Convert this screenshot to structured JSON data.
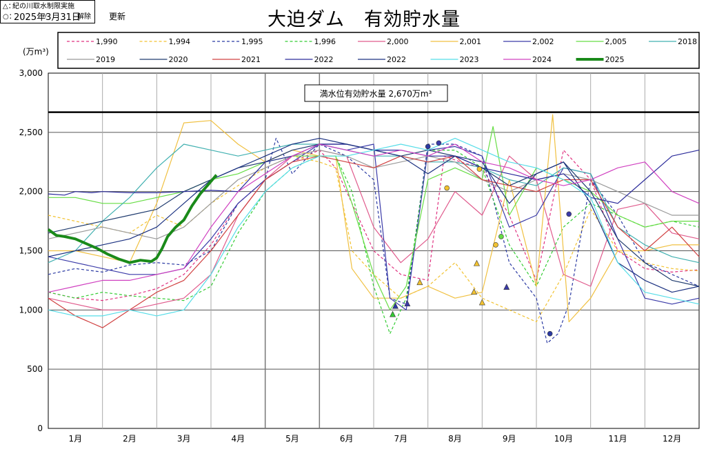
{
  "header": {
    "date": "2025年3月31日",
    "updated": "更新",
    "title": "大迫ダム　有効貯水量"
  },
  "notes": {
    "restrict_mark": "△：",
    "restrict_text": "紀の川取水制限実施",
    "release_mark": "○：",
    "release_ditto": "〃",
    "release_text": "解除"
  },
  "colors": {
    "y1990": "#e0307f",
    "y1994": "#f2c230",
    "y1995": "#2b3aa3",
    "y1996": "#33cc33",
    "y2000": "#e05a8c",
    "y2001": "#f0c040",
    "y2002": "#3a3aa8",
    "y2005": "#66dd44",
    "y2018": "#40b0b0",
    "y2019": "#999999",
    "y2020": "#1f3b6e",
    "y2021": "#d04040",
    "y2022a": "#2a2a9a",
    "y2022b": "#1a3080",
    "y2023": "#55dde8",
    "y2024": "#d040c0",
    "y2025": "#1a8a1a"
  },
  "chart_data": {
    "type": "line",
    "title": "大迫ダム　有効貯水量",
    "ylabel": "(万m³)",
    "ylim": [
      0,
      3000
    ],
    "yticks": [
      "0",
      "500",
      "1,000",
      "1,500",
      "2,000",
      "2,500",
      "3,000"
    ],
    "ytick_values": [
      0,
      500,
      1000,
      1500,
      2000,
      2500,
      3000
    ],
    "months": [
      "1月",
      "2月",
      "3月",
      "4月",
      "5月",
      "6月",
      "7月",
      "8月",
      "9月",
      "10月",
      "11月",
      "12月"
    ],
    "full_capacity": {
      "value": 2670,
      "label": "満水位有効貯水量 2,670万m³"
    },
    "legend": [
      {
        "key": "y1990",
        "label": "1,990",
        "dash": "4 3",
        "width": 1.2
      },
      {
        "key": "y1994",
        "label": "1,994",
        "dash": "4 3",
        "width": 1.2
      },
      {
        "key": "y1995",
        "label": "1,995",
        "dash": "4 3",
        "width": 1.2
      },
      {
        "key": "y1996",
        "label": "1,996",
        "dash": "4 3",
        "width": 1.2
      },
      {
        "key": "y2000",
        "label": "2,000",
        "dash": "",
        "width": 1.2
      },
      {
        "key": "y2001",
        "label": "2,001",
        "dash": "",
        "width": 1.2
      },
      {
        "key": "y2002",
        "label": "2,002",
        "dash": "",
        "width": 1.2
      },
      {
        "key": "y2005",
        "label": "2,005",
        "dash": "",
        "width": 1.2
      },
      {
        "key": "y2018",
        "label": "2018",
        "dash": "",
        "width": 1.2
      },
      {
        "key": "y2019",
        "label": "2019",
        "dash": "",
        "width": 1.2
      },
      {
        "key": "y2020",
        "label": "2020",
        "dash": "",
        "width": 1.2
      },
      {
        "key": "y2021",
        "label": "2021",
        "dash": "",
        "width": 1.2
      },
      {
        "key": "y2022a",
        "label": "2022",
        "dash": "",
        "width": 1.2
      },
      {
        "key": "y2022b",
        "label": "2022",
        "dash": "",
        "width": 1.2
      },
      {
        "key": "y2023",
        "label": "2023",
        "dash": "",
        "width": 1.2
      },
      {
        "key": "y2024",
        "label": "2024",
        "dash": "",
        "width": 1.2
      },
      {
        "key": "y2025",
        "label": "2025",
        "dash": "",
        "width": 4
      }
    ],
    "series": [
      {
        "key": "y1990",
        "name": "1,990",
        "x": [
          0,
          0.5,
          1,
          1.5,
          2,
          2.5,
          3,
          3.5,
          4,
          4.5,
          5,
          5.3,
          5.6,
          6,
          6.5,
          7,
          7.3,
          7.6,
          8,
          8.5,
          9,
          9.5,
          10,
          10.5,
          11,
          11.5,
          12
        ],
        "y": [
          1150,
          1100,
          1080,
          1120,
          1180,
          1300,
          1550,
          1900,
          2100,
          2250,
          2350,
          2200,
          1900,
          1500,
          1300,
          1250,
          2300,
          2250,
          2200,
          1800,
          1250,
          2350,
          2100,
          1500,
          1350,
          1320,
          1340
        ]
      },
      {
        "key": "y1994",
        "name": "1,994",
        "x": [
          0,
          0.5,
          1,
          1.5,
          2,
          2.5,
          3,
          3.5,
          4,
          4.5,
          5,
          5.3,
          5.6,
          6,
          6.5,
          7,
          7.5,
          8,
          8.5,
          9,
          9.5,
          10,
          10.5,
          11,
          11.5,
          12
        ],
        "y": [
          1800,
          1750,
          1700,
          1650,
          1800,
          1700,
          1900,
          2050,
          2200,
          2300,
          2250,
          2200,
          1500,
          1300,
          1100,
          1200,
          1400,
          1100,
          1000,
          900,
          1300,
          1850,
          1500,
          1400,
          1350,
          1330
        ]
      },
      {
        "key": "y1995",
        "name": "1,995",
        "x": [
          0,
          0.5,
          1,
          1.5,
          2,
          2.5,
          3,
          3.5,
          4,
          4.2,
          4.5,
          5,
          5.5,
          6,
          6.3,
          6.6,
          7,
          7.5,
          8,
          8.5,
          9,
          9.2,
          9.4,
          9.6,
          10,
          10.5,
          11,
          11.5,
          12
        ],
        "y": [
          1300,
          1350,
          1320,
          1380,
          1400,
          1380,
          1500,
          1900,
          2100,
          2450,
          2150,
          2400,
          2300,
          2100,
          1100,
          1050,
          2400,
          2400,
          2300,
          1400,
          1100,
          720,
          800,
          1050,
          2100,
          1800,
          1400,
          1300,
          1200
        ]
      },
      {
        "key": "y1996",
        "name": "1,996",
        "x": [
          0,
          0.5,
          1,
          1.5,
          2,
          2.5,
          3,
          3.5,
          4,
          4.5,
          5,
          5.3,
          5.6,
          6,
          6.3,
          6.6,
          7,
          7.5,
          8,
          8.5,
          9,
          9.5,
          10,
          10.5,
          11,
          11.5,
          12
        ],
        "y": [
          1150,
          1100,
          1150,
          1120,
          1100,
          1080,
          1200,
          1650,
          2000,
          2200,
          2300,
          2300,
          2000,
          1200,
          800,
          1100,
          2350,
          2350,
          2200,
          1550,
          1200,
          1700,
          1900,
          1800,
          1700,
          1750,
          1700
        ]
      },
      {
        "key": "y2000",
        "name": "2,000",
        "x": [
          0,
          0.5,
          1,
          1.5,
          2,
          2.5,
          3,
          3.5,
          4,
          4.5,
          5,
          5.5,
          6,
          6.5,
          7,
          7.5,
          8,
          8.5,
          9,
          9.5,
          10,
          10.5,
          11,
          11.5,
          12
        ],
        "y": [
          1100,
          1050,
          1000,
          1000,
          1050,
          1100,
          1300,
          1800,
          2100,
          2300,
          2350,
          2300,
          1700,
          1400,
          1600,
          2000,
          1800,
          2300,
          2100,
          1300,
          1200,
          1850,
          1900,
          1650,
          1600
        ]
      },
      {
        "key": "y2001",
        "name": "2,001",
        "x": [
          0,
          0.5,
          1,
          1.5,
          2,
          2.5,
          3,
          3.5,
          4,
          4.5,
          5,
          5.3,
          5.6,
          6,
          6.5,
          7,
          7.5,
          8,
          8.5,
          9,
          9.3,
          9.6,
          10,
          10.5,
          11,
          11.5,
          12
        ],
        "y": [
          1500,
          1500,
          1450,
          1400,
          1900,
          2580,
          2600,
          2400,
          2250,
          2350,
          2300,
          2300,
          1350,
          1100,
          1100,
          1200,
          1100,
          1150,
          2100,
          1200,
          2650,
          900,
          1100,
          1500,
          1500,
          1550,
          1550
        ]
      },
      {
        "key": "y2002",
        "name": "2,002",
        "x": [
          0,
          0.5,
          1,
          1.5,
          2,
          2.5,
          3,
          3.5,
          4,
          4.5,
          5,
          5.5,
          6,
          6.3,
          6.6,
          7,
          7.5,
          8,
          8.5,
          9,
          9.5,
          10,
          10.5,
          11,
          11.5,
          12
        ],
        "y": [
          1450,
          1400,
          1350,
          1300,
          1300,
          1350,
          1600,
          1900,
          2100,
          2250,
          2400,
          2350,
          2400,
          1100,
          1000,
          2350,
          2380,
          2300,
          1700,
          1800,
          2200,
          2150,
          1600,
          1100,
          1050,
          1100
        ]
      },
      {
        "key": "y2005",
        "name": "2,005",
        "x": [
          0,
          0.5,
          1,
          1.5,
          2,
          2.5,
          3,
          3.5,
          4,
          4.5,
          5,
          5.3,
          5.6,
          6,
          6.3,
          6.6,
          7,
          7.5,
          8,
          8.2,
          8.5,
          9,
          9.5,
          10,
          10.5,
          11,
          11.5,
          12
        ],
        "y": [
          1950,
          1950,
          1900,
          1900,
          1950,
          2000,
          2100,
          2150,
          2250,
          2300,
          2300,
          2300,
          1900,
          1300,
          1000,
          1200,
          2100,
          2200,
          2100,
          2550,
          1800,
          2200,
          2100,
          2000,
          1800,
          1700,
          1750,
          1750
        ]
      },
      {
        "key": "y2018",
        "name": "2018",
        "x": [
          0,
          0.5,
          1,
          1.5,
          2,
          2.5,
          3,
          3.5,
          4,
          4.5,
          5,
          5.5,
          6,
          6.5,
          7,
          7.5,
          8,
          8.5,
          9,
          9.5,
          10,
          10.5,
          11,
          11.5,
          12
        ],
        "y": [
          1400,
          1500,
          1750,
          1950,
          2200,
          2400,
          2350,
          2300,
          2350,
          2400,
          2400,
          2350,
          2300,
          2300,
          2250,
          2250,
          2200,
          2100,
          2050,
          2200,
          2150,
          1700,
          1550,
          1450,
          1400
        ]
      },
      {
        "key": "y2019",
        "name": "2019",
        "x": [
          0,
          0.5,
          1,
          1.5,
          2,
          2.5,
          3,
          3.5,
          4,
          4.5,
          5,
          5.5,
          6,
          6.5,
          7,
          7.5,
          8,
          8.5,
          9,
          9.5,
          10,
          10.5,
          11,
          11.5,
          12
        ],
        "y": [
          1600,
          1650,
          1700,
          1650,
          1600,
          1700,
          1900,
          2100,
          2200,
          2300,
          2350,
          2300,
          2200,
          2250,
          2300,
          2250,
          2100,
          2000,
          2100,
          2150,
          2100,
          2000,
          1900,
          1800,
          1800
        ]
      },
      {
        "key": "y2020",
        "name": "2020",
        "x": [
          0,
          0.5,
          1,
          1.5,
          2,
          2.5,
          3,
          3.5,
          4,
          4.5,
          5,
          5.5,
          6,
          6.5,
          7,
          7.5,
          8,
          8.5,
          9,
          9.5,
          10,
          10.5,
          11,
          11.5,
          12
        ],
        "y": [
          1650,
          1700,
          1750,
          1800,
          1850,
          2000,
          2100,
          2200,
          2250,
          2350,
          2400,
          2400,
          2350,
          2300,
          2350,
          2300,
          2200,
          2050,
          2150,
          2250,
          2000,
          1600,
          1400,
          1250,
          1200
        ]
      },
      {
        "key": "y2021",
        "name": "2021",
        "x": [
          0,
          0.5,
          1,
          1.5,
          2,
          2.5,
          3,
          3.5,
          4,
          4.5,
          5,
          5.5,
          6,
          6.5,
          7,
          7.5,
          8,
          8.5,
          9,
          9.5,
          10,
          10.5,
          11,
          11.5,
          12
        ],
        "y": [
          1100,
          950,
          850,
          1000,
          1150,
          1250,
          1500,
          1800,
          2100,
          2250,
          2300,
          2250,
          2200,
          2300,
          2250,
          2300,
          2100,
          2050,
          2000,
          2100,
          2100,
          1700,
          1500,
          1700,
          1450
        ]
      },
      {
        "key": "y2022a",
        "name": "2022",
        "x": [
          0,
          0.3,
          0.5,
          0.8,
          1,
          1.5,
          2,
          2.5,
          3,
          3.5,
          4,
          4.5,
          5,
          5.5,
          6,
          6.5,
          7,
          7.5,
          8,
          8.5,
          9,
          9.5,
          10,
          10.5,
          11,
          11.5,
          12
        ],
        "y": [
          1980,
          1970,
          2000,
          1990,
          2000,
          1990,
          1990,
          2000,
          2010,
          2000,
          2250,
          2300,
          2400,
          2400,
          2350,
          2350,
          2300,
          2300,
          2200,
          2150,
          2100,
          2150,
          1950,
          1900,
          2100,
          2300,
          2350
        ]
      },
      {
        "key": "y2022b",
        "name": "2022",
        "x": [
          0,
          0.5,
          1,
          1.5,
          2,
          2.5,
          3,
          3.5,
          4,
          4.5,
          5,
          5.5,
          6,
          6.5,
          7,
          7.5,
          8,
          8.5,
          9,
          9.5,
          10,
          10.5,
          11,
          11.5,
          12
        ],
        "y": [
          1450,
          1500,
          1550,
          1600,
          1700,
          1900,
          2100,
          2200,
          2300,
          2400,
          2450,
          2400,
          2350,
          2300,
          2150,
          2300,
          2250,
          1900,
          2150,
          2250,
          1900,
          1400,
          1250,
          1150,
          1200
        ]
      },
      {
        "key": "y2023",
        "name": "2023",
        "x": [
          0,
          0.5,
          1,
          1.5,
          2,
          2.5,
          3,
          3.5,
          4,
          4.5,
          5,
          5.5,
          6,
          6.5,
          7,
          7.5,
          8,
          8.5,
          9,
          9.5,
          10,
          10.5,
          11,
          11.5,
          12
        ],
        "y": [
          1000,
          950,
          950,
          1000,
          950,
          1000,
          1300,
          1700,
          2000,
          2200,
          2300,
          2300,
          2350,
          2400,
          2350,
          2450,
          2350,
          2250,
          2200,
          2100,
          1950,
          1400,
          1150,
          1100,
          1050
        ]
      },
      {
        "key": "y2024",
        "name": "2024",
        "x": [
          0,
          0.5,
          1,
          1.5,
          2,
          2.5,
          3,
          3.5,
          4,
          4.5,
          5,
          5.5,
          6,
          6.5,
          7,
          7.5,
          8,
          8.5,
          9,
          9.5,
          10,
          10.5,
          11,
          11.5,
          12
        ],
        "y": [
          1150,
          1200,
          1250,
          1250,
          1300,
          1350,
          1700,
          2000,
          2150,
          2300,
          2400,
          2350,
          2300,
          2350,
          2300,
          2400,
          2250,
          2200,
          2100,
          2050,
          2100,
          2200,
          2250,
          2000,
          1900
        ]
      },
      {
        "key": "y2025",
        "name": "2025",
        "x": [
          0,
          0.15,
          0.3,
          0.5,
          0.7,
          0.9,
          1.1,
          1.3,
          1.5,
          1.7,
          1.9,
          2.0,
          2.1,
          2.2,
          2.35,
          2.5,
          2.65,
          2.8,
          2.95,
          3.1
        ],
        "y": [
          1680,
          1630,
          1620,
          1600,
          1560,
          1520,
          1470,
          1430,
          1400,
          1420,
          1410,
          1440,
          1520,
          1620,
          1700,
          1760,
          1880,
          1980,
          2060,
          2140
        ]
      }
    ],
    "markers": [
      {
        "shape": "tri",
        "key": "y1996",
        "x": 6.35,
        "y": 960
      },
      {
        "shape": "tri",
        "key": "y1995",
        "x": 6.4,
        "y": 1030
      },
      {
        "shape": "tri",
        "key": "y2002",
        "x": 6.62,
        "y": 1050
      },
      {
        "shape": "tri",
        "key": "y1994",
        "x": 6.85,
        "y": 1230
      },
      {
        "shape": "tri",
        "key": "y1994",
        "x": 7.9,
        "y": 1390
      },
      {
        "shape": "tri",
        "key": "y1994",
        "x": 7.85,
        "y": 1150
      },
      {
        "shape": "tri",
        "key": "y1994",
        "x": 8.0,
        "y": 1060
      },
      {
        "shape": "tri",
        "key": "y2002",
        "x": 8.45,
        "y": 1190
      },
      {
        "shape": "dot",
        "key": "y1995",
        "x": 7.0,
        "y": 2380
      },
      {
        "shape": "dot",
        "key": "y2002",
        "x": 7.2,
        "y": 2410
      },
      {
        "shape": "dot",
        "key": "y1994",
        "x": 7.35,
        "y": 2030
      },
      {
        "shape": "dot",
        "key": "y1994",
        "x": 7.95,
        "y": 2190
      },
      {
        "shape": "dot",
        "key": "y1994",
        "x": 8.25,
        "y": 1550
      },
      {
        "shape": "dot",
        "key": "y2005",
        "x": 8.35,
        "y": 1620
      },
      {
        "shape": "dot",
        "key": "y1995",
        "x": 9.25,
        "y": 800
      },
      {
        "shape": "dot",
        "key": "y2002",
        "x": 9.6,
        "y": 1810
      }
    ]
  }
}
